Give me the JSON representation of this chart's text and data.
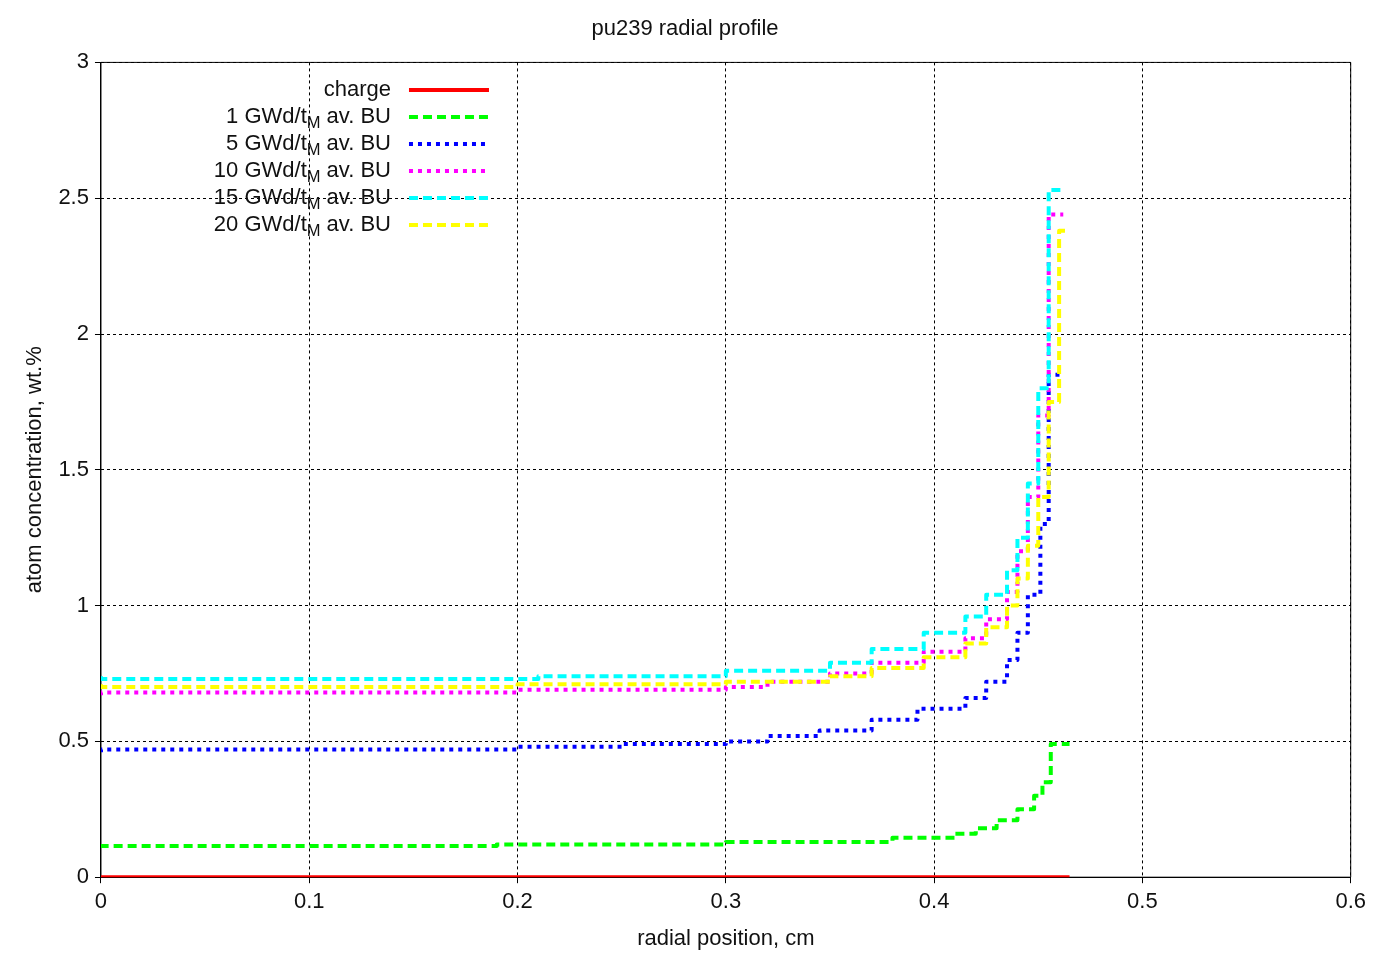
{
  "chart_data": {
    "type": "step",
    "title": "pu239 radial profile",
    "xlabel": "radial position, cm",
    "ylabel": "atom concentration, wt.%",
    "xlim": [
      0,
      0.6
    ],
    "ylim": [
      0,
      3
    ],
    "xticks": [
      0,
      0.1,
      0.2,
      0.3,
      0.4,
      0.5,
      0.6
    ],
    "yticks": [
      0,
      0.5,
      1,
      1.5,
      2,
      2.5,
      3
    ],
    "grid": true,
    "legend": "top left",
    "series": [
      {
        "name": "charge",
        "color": "#ff0000",
        "line_style": "solid",
        "x": [
          0,
          0.465
        ],
        "values": [
          0,
          0
        ]
      },
      {
        "name": "1 GWd/t$_{M}$ av. BU",
        "color": "#00ff00",
        "line_style": "dashed",
        "x": [
          0,
          0.19,
          0.3,
          0.38,
          0.41,
          0.42,
          0.43,
          0.44,
          0.448,
          0.452,
          0.456,
          0.46,
          0.465
        ],
        "values": [
          0.11,
          0.115,
          0.12,
          0.13,
          0.145,
          0.16,
          0.18,
          0.21,
          0.25,
          0.3,
          0.35,
          0.49,
          0.49
        ]
      },
      {
        "name": "5 GWd/t$_{M}$ av. BU",
        "color": "#0000ff",
        "line_style": "dotted",
        "x": [
          0,
          0.2,
          0.25,
          0.3,
          0.32,
          0.345,
          0.37,
          0.392,
          0.415,
          0.425,
          0.435,
          0.44,
          0.445,
          0.451,
          0.455,
          0.46,
          0.462
        ],
        "values": [
          0.46,
          0.47,
          0.48,
          0.49,
          0.5,
          0.52,
          0.54,
          0.58,
          0.62,
          0.66,
          0.72,
          0.8,
          0.9,
          1.04,
          1.3,
          1.85,
          1.85
        ]
      },
      {
        "name": "10 GWd/t$_{M}$ av. BU",
        "color": "#ff00ff",
        "line_style": "dotted",
        "x": [
          0,
          0.2,
          0.3,
          0.32,
          0.35,
          0.37,
          0.395,
          0.415,
          0.425,
          0.435,
          0.44,
          0.445,
          0.45,
          0.455,
          0.46,
          0.462
        ],
        "values": [
          0.67,
          0.68,
          0.69,
          0.7,
          0.72,
          0.75,
          0.79,
          0.83,
          0.88,
          0.95,
          1.05,
          1.2,
          1.4,
          1.7,
          2.44,
          2.44
        ]
      },
      {
        "name": "15 GWd/t$_{M}$ av. BU",
        "color": "#00ffff",
        "line_style": "dashed",
        "x": [
          0,
          0.21,
          0.3,
          0.35,
          0.37,
          0.395,
          0.415,
          0.425,
          0.435,
          0.44,
          0.445,
          0.45,
          0.455,
          0.46,
          0.463
        ],
        "values": [
          0.74,
          0.73,
          0.74,
          0.76,
          0.79,
          0.84,
          0.9,
          0.96,
          1.04,
          1.13,
          1.25,
          1.45,
          1.8,
          2.53,
          2.53
        ]
      },
      {
        "name": "20 GWd/t$_{M}$ av. BU",
        "color": "#ffff00",
        "line_style": "dashed",
        "x": [
          0,
          0.2,
          0.3,
          0.35,
          0.37,
          0.395,
          0.415,
          0.425,
          0.435,
          0.44,
          0.445,
          0.45,
          0.455,
          0.46,
          0.463
        ],
        "values": [
          0.71,
          0.7,
          0.71,
          0.72,
          0.74,
          0.77,
          0.81,
          0.86,
          0.92,
          1.0,
          1.1,
          1.22,
          1.4,
          1.75,
          2.38
        ]
      }
    ]
  }
}
